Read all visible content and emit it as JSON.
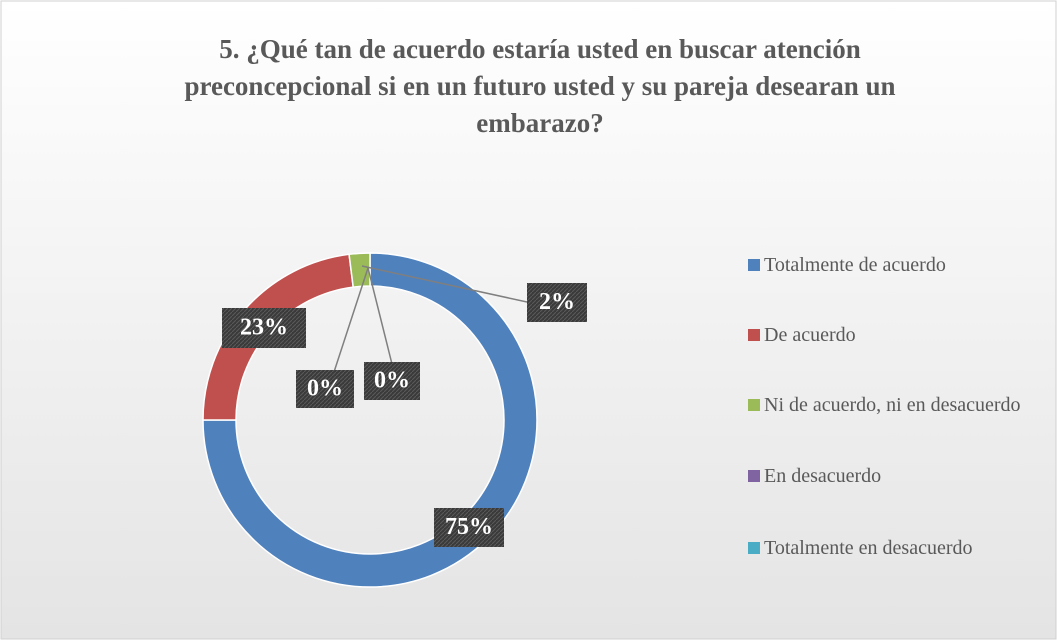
{
  "chart_data": {
    "type": "donut",
    "title": "5. ¿Qué tan de acuerdo estaría usted en buscar atención preconcepcional si en un futuro usted y su pareja desearan un embarazo?",
    "categories": [
      "Totalmente de acuerdo",
      "De acuerdo",
      "Ni de acuerdo, ni en desacuerdo",
      "En desacuerdo",
      "Totalmente en desacuerdo"
    ],
    "values": [
      75,
      23,
      2,
      0,
      0
    ],
    "value_labels": [
      "75%",
      "23%",
      "2%",
      "0%",
      "0%"
    ],
    "colors": [
      "#4f81bd",
      "#c0504d",
      "#9bbb59",
      "#8064a2",
      "#4bacc6"
    ],
    "legend": "right"
  }
}
